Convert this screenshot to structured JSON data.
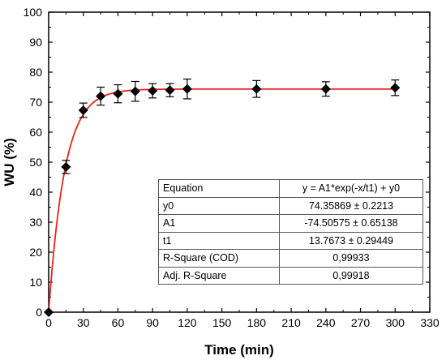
{
  "chart_data": {
    "type": "scatter",
    "xlabel": "Time (min)",
    "ylabel": "WU (%)",
    "xlim": [
      0,
      330
    ],
    "ylim": [
      0,
      100
    ],
    "x_ticks": [
      0,
      30,
      60,
      90,
      120,
      150,
      180,
      210,
      240,
      270,
      300,
      330
    ],
    "y_ticks": [
      0,
      10,
      20,
      30,
      40,
      50,
      60,
      70,
      80,
      90,
      100
    ],
    "grid": false,
    "series": [
      {
        "marker": "diamond",
        "color": "#000000",
        "x": [
          0,
          15,
          30,
          45,
          60,
          75,
          90,
          105,
          120,
          180,
          240,
          300
        ],
        "y": [
          0,
          48.4,
          67.3,
          72.0,
          72.8,
          73.6,
          73.8,
          74.0,
          74.4,
          74.4,
          74.4,
          74.8
        ],
        "err": [
          0,
          2.2,
          2.4,
          3.0,
          3.0,
          3.3,
          2.4,
          2.2,
          3.3,
          2.8,
          2.4,
          2.6
        ]
      }
    ],
    "fit": {
      "color": "#e8231e",
      "model": "exp",
      "y0": 74.35869,
      "A1": -74.50575,
      "t1": 13.7673
    },
    "fit_table": {
      "rows": [
        {
          "key": "Equation",
          "value": "y = A1*exp(-x/t1) + y0"
        },
        {
          "key": "y0",
          "value": "74.35869 ± 0.2213"
        },
        {
          "key": "A1",
          "value": "-74.50575 ± 0.65138"
        },
        {
          "key": "t1",
          "value": "13.7673 ± 0.29449"
        },
        {
          "key": "R-Square (COD)",
          "value": "0,99933"
        },
        {
          "key": "Adj. R-Square",
          "value": "0,99918"
        }
      ]
    }
  }
}
